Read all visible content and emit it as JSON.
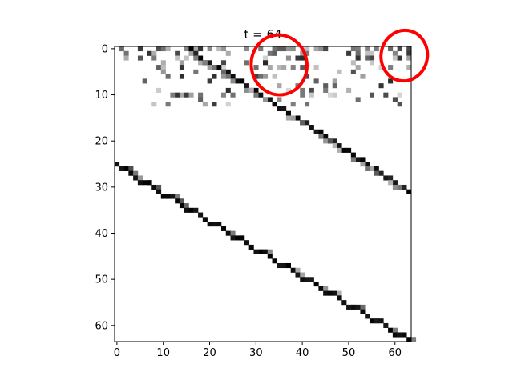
{
  "chart_data": {
    "type": "heatmap",
    "title": "t = 64",
    "xlabel": "",
    "ylabel": "",
    "xlim": [
      -0.5,
      63.5
    ],
    "ylim": [
      63.5,
      -0.5
    ],
    "y_axis_inverted": true,
    "grid": false,
    "colormap": "gray_r",
    "x_ticks": [
      0,
      10,
      20,
      30,
      40,
      50,
      60
    ],
    "y_ticks": [
      0,
      10,
      20,
      30,
      40,
      50,
      60
    ],
    "lower_diagonal": {
      "description_value_range": [
        0.8,
        1.0
      ],
      "cells": [
        [
          25,
          0
        ],
        [
          26,
          1
        ],
        [
          26,
          2
        ],
        [
          27,
          3
        ],
        [
          28,
          4
        ],
        [
          29,
          5
        ],
        [
          29,
          6
        ],
        [
          29,
          7
        ],
        [
          30,
          8
        ],
        [
          31,
          9
        ],
        [
          32,
          10
        ],
        [
          32,
          11
        ],
        [
          32,
          12
        ],
        [
          33,
          13
        ],
        [
          34,
          14
        ],
        [
          35,
          15
        ],
        [
          35,
          16
        ],
        [
          35,
          17
        ],
        [
          36,
          18
        ],
        [
          37,
          19
        ],
        [
          38,
          20
        ],
        [
          38,
          21
        ],
        [
          38,
          22
        ],
        [
          39,
          23
        ],
        [
          40,
          24
        ],
        [
          41,
          25
        ],
        [
          41,
          26
        ],
        [
          41,
          27
        ],
        [
          42,
          28
        ],
        [
          43,
          29
        ],
        [
          44,
          30
        ],
        [
          44,
          31
        ],
        [
          44,
          32
        ],
        [
          45,
          33
        ],
        [
          46,
          34
        ],
        [
          47,
          35
        ],
        [
          47,
          36
        ],
        [
          47,
          37
        ],
        [
          48,
          38
        ],
        [
          49,
          39
        ],
        [
          50,
          40
        ],
        [
          50,
          41
        ],
        [
          50,
          42
        ],
        [
          51,
          43
        ],
        [
          52,
          44
        ],
        [
          53,
          45
        ],
        [
          53,
          46
        ],
        [
          53,
          47
        ],
        [
          54,
          48
        ],
        [
          55,
          49
        ],
        [
          56,
          50
        ],
        [
          56,
          51
        ],
        [
          56,
          52
        ],
        [
          57,
          53
        ],
        [
          58,
          54
        ],
        [
          59,
          55
        ],
        [
          59,
          56
        ],
        [
          59,
          57
        ],
        [
          60,
          58
        ],
        [
          61,
          59
        ],
        [
          62,
          60
        ],
        [
          62,
          61
        ],
        [
          62,
          62
        ],
        [
          63,
          63
        ]
      ]
    },
    "upper_diagonal": {
      "cells": [
        [
          0,
          16
        ],
        [
          1,
          17
        ],
        [
          2,
          18
        ],
        [
          3,
          19
        ],
        [
          3,
          20
        ],
        [
          4,
          21
        ],
        [
          4,
          22
        ],
        [
          5,
          23
        ],
        [
          5,
          24
        ],
        [
          6,
          25
        ],
        [
          7,
          26
        ],
        [
          7,
          27
        ],
        [
          8,
          28
        ],
        [
          9,
          29
        ],
        [
          9,
          30
        ],
        [
          10,
          31
        ],
        [
          11,
          32
        ],
        [
          11,
          33
        ],
        [
          12,
          34
        ],
        [
          13,
          35
        ],
        [
          13,
          36
        ],
        [
          14,
          37
        ],
        [
          15,
          38
        ],
        [
          15,
          39
        ],
        [
          16,
          40
        ],
        [
          16,
          41
        ],
        [
          17,
          42
        ],
        [
          18,
          43
        ],
        [
          18,
          44
        ],
        [
          19,
          45
        ],
        [
          20,
          46
        ],
        [
          20,
          47
        ],
        [
          21,
          48
        ],
        [
          22,
          49
        ],
        [
          22,
          50
        ],
        [
          23,
          51
        ],
        [
          24,
          52
        ],
        [
          24,
          53
        ],
        [
          25,
          54
        ],
        [
          26,
          55
        ],
        [
          26,
          56
        ],
        [
          27,
          57
        ],
        [
          28,
          58
        ],
        [
          28,
          59
        ],
        [
          29,
          60
        ],
        [
          30,
          61
        ],
        [
          30,
          62
        ],
        [
          31,
          63
        ]
      ]
    },
    "noise_region": {
      "rows": [
        0,
        12
      ],
      "cols": [
        0,
        63
      ]
    },
    "annotations": [
      {
        "type": "hand-drawn-circle",
        "color": "#ff0000",
        "around_cells": {
          "rows": [
            -3,
            10
          ],
          "cols": [
            29,
            41
          ]
        }
      },
      {
        "type": "hand-drawn-circle",
        "color": "#ff0000",
        "around_cells": {
          "rows": [
            -4,
            7
          ],
          "cols": [
            57,
            67
          ]
        }
      }
    ]
  },
  "colors": {
    "background": "#ffffff",
    "cell_dark": "#000000",
    "annotation": "#ff0000"
  }
}
